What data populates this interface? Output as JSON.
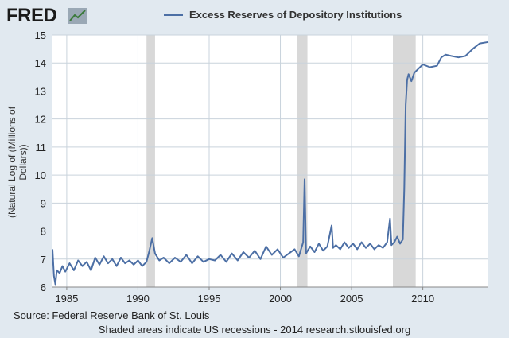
{
  "header": {
    "logo_text": "FRED",
    "logo_icon": "chart-line-icon"
  },
  "colors": {
    "series": "#4c6fa5",
    "recession": "#d8d8d8",
    "grid": "#ffffff",
    "plot_background": "#ffffff",
    "page_background": "#e1e9f0"
  },
  "chart_data": {
    "type": "line",
    "title": "",
    "legend": [
      "Excess Reserves of Depository Institutions"
    ],
    "legend_position": "top",
    "xlabel": "",
    "ylabel": "(Natural Log of (Millions of Dollars))",
    "xlim": [
      1984.0,
      2014.6
    ],
    "ylim": [
      6,
      15
    ],
    "grid": true,
    "x_ticks": [
      "1985",
      "1990",
      "1995",
      "2000",
      "2005",
      "2010"
    ],
    "y_ticks": [
      "6",
      "7",
      "8",
      "9",
      "10",
      "11",
      "12",
      "13",
      "14",
      "15"
    ],
    "recessions": [
      [
        1990.6,
        1991.2
      ],
      [
        2001.2,
        2001.9
      ],
      [
        2007.9,
        2009.5
      ]
    ],
    "series": [
      {
        "name": "Excess Reserves of Depository Institutions",
        "x": [
          1984.0,
          1984.1,
          1984.2,
          1984.3,
          1984.5,
          1984.7,
          1984.9,
          1985.2,
          1985.5,
          1985.8,
          1986.1,
          1986.4,
          1986.7,
          1987.0,
          1987.3,
          1987.6,
          1987.9,
          1988.2,
          1988.5,
          1988.8,
          1989.1,
          1989.4,
          1989.7,
          1990.0,
          1990.3,
          1990.6,
          1990.8,
          1991.0,
          1991.2,
          1991.5,
          1991.8,
          1992.2,
          1992.6,
          1993.0,
          1993.4,
          1993.8,
          1994.2,
          1994.6,
          1995.0,
          1995.4,
          1995.8,
          1996.2,
          1996.6,
          1997.0,
          1997.4,
          1997.8,
          1998.2,
          1998.6,
          1999.0,
          1999.4,
          1999.8,
          2000.2,
          2000.6,
          2001.0,
          2001.3,
          2001.6,
          2001.7,
          2001.8,
          2002.1,
          2002.4,
          2002.7,
          2003.0,
          2003.3,
          2003.6,
          2003.7,
          2003.9,
          2004.2,
          2004.5,
          2004.8,
          2005.1,
          2005.4,
          2005.7,
          2006.0,
          2006.3,
          2006.6,
          2006.9,
          2007.2,
          2007.5,
          2007.7,
          2007.8,
          2008.0,
          2008.2,
          2008.4,
          2008.6,
          2008.7,
          2008.8,
          2008.9,
          2009.0,
          2009.2,
          2009.4,
          2009.7,
          2010.0,
          2010.5,
          2011.0,
          2011.3,
          2011.6,
          2012.0,
          2012.5,
          2013.0,
          2013.5,
          2014.0,
          2014.6
        ],
        "values": [
          7.35,
          6.4,
          6.1,
          6.6,
          6.5,
          6.75,
          6.55,
          6.85,
          6.6,
          6.95,
          6.75,
          6.9,
          6.6,
          7.05,
          6.8,
          7.1,
          6.85,
          7.0,
          6.75,
          7.05,
          6.85,
          6.95,
          6.8,
          6.95,
          6.75,
          6.9,
          7.3,
          7.75,
          7.2,
          6.95,
          7.05,
          6.85,
          7.05,
          6.9,
          7.15,
          6.85,
          7.1,
          6.9,
          7.0,
          6.95,
          7.15,
          6.9,
          7.2,
          6.95,
          7.25,
          7.05,
          7.3,
          7.0,
          7.45,
          7.15,
          7.35,
          7.05,
          7.2,
          7.35,
          7.1,
          7.6,
          9.85,
          7.2,
          7.45,
          7.25,
          7.55,
          7.3,
          7.45,
          8.2,
          7.4,
          7.5,
          7.35,
          7.6,
          7.4,
          7.55,
          7.35,
          7.6,
          7.4,
          7.55,
          7.35,
          7.5,
          7.4,
          7.6,
          8.45,
          7.5,
          7.6,
          7.8,
          7.55,
          7.7,
          9.5,
          12.5,
          13.4,
          13.6,
          13.35,
          13.65,
          13.8,
          13.95,
          13.85,
          13.9,
          14.2,
          14.3,
          14.25,
          14.2,
          14.25,
          14.5,
          14.7,
          14.75
        ]
      }
    ]
  },
  "footer": {
    "source": "Source: Federal Reserve Bank of St. Louis",
    "note": "Shaded areas indicate US recessions - 2014 research.stlouisfed.org"
  }
}
